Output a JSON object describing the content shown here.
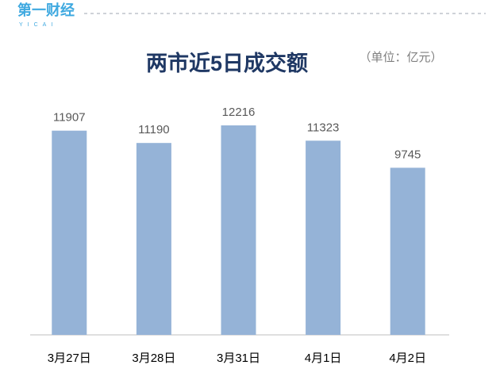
{
  "chart_data": {
    "type": "bar",
    "logo": "第一财经",
    "logo_sub": "YICAI",
    "title": "两市近5日成交额",
    "subtitle": "（单位：亿元）",
    "categories": [
      "3月27日",
      "3月28日",
      "3月31日",
      "4月1日",
      "4月2日"
    ],
    "values": [
      11907,
      11190,
      12216,
      11323,
      9745
    ],
    "color": "#95b3d7"
  }
}
